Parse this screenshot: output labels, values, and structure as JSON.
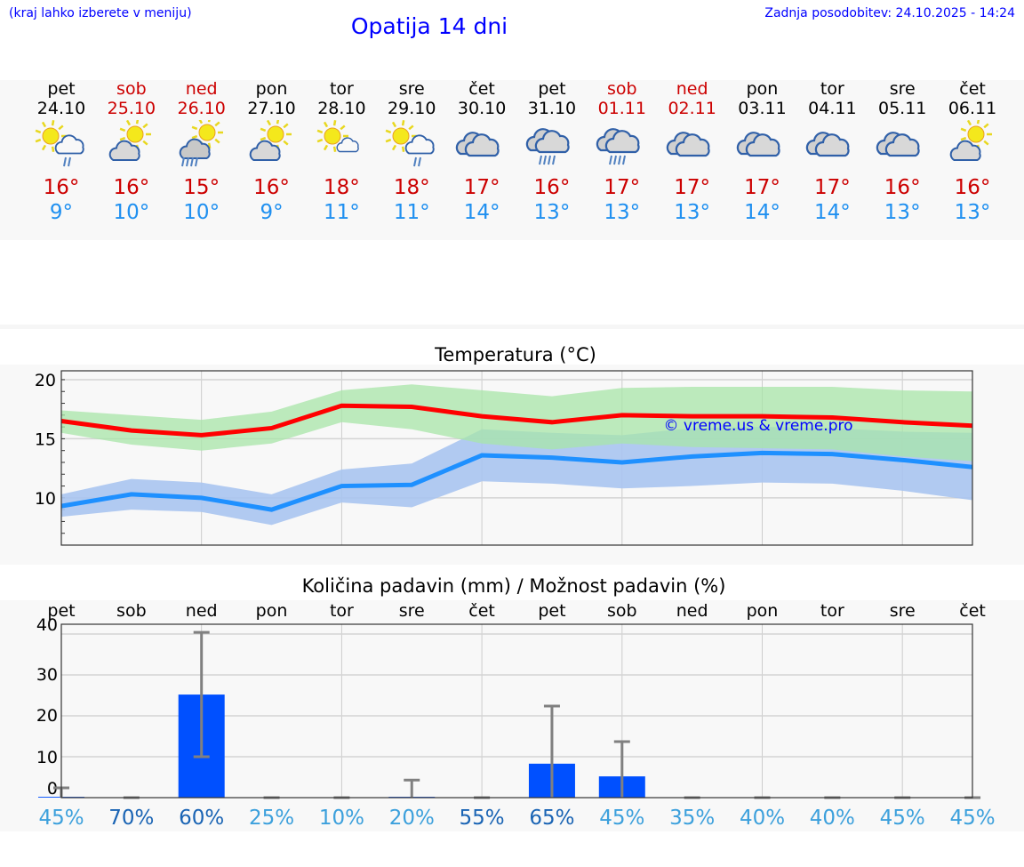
{
  "header": {
    "hint": "(kraj lahko izberete v meniju)",
    "title": "Opatija 14 dni",
    "updated": "Zadnja posodobitev: 24.10.2025 - 14:24"
  },
  "days": [
    {
      "name": "pet",
      "date": "24.10",
      "weekend": false,
      "icon": "sun-cloud-rain",
      "hi": "16°",
      "lo": "9°"
    },
    {
      "name": "sob",
      "date": "25.10",
      "weekend": true,
      "icon": "cloud-sun",
      "hi": "16°",
      "lo": "10°"
    },
    {
      "name": "ned",
      "date": "26.10",
      "weekend": true,
      "icon": "cloud-sun-rain",
      "hi": "15°",
      "lo": "10°"
    },
    {
      "name": "pon",
      "date": "27.10",
      "weekend": false,
      "icon": "cloud-sun",
      "hi": "16°",
      "lo": "9°"
    },
    {
      "name": "tor",
      "date": "28.10",
      "weekend": false,
      "icon": "sun-small-cloud",
      "hi": "18°",
      "lo": "11°"
    },
    {
      "name": "sre",
      "date": "29.10",
      "weekend": false,
      "icon": "sun-cloud-rain",
      "hi": "18°",
      "lo": "11°"
    },
    {
      "name": "čet",
      "date": "30.10",
      "weekend": false,
      "icon": "overcast",
      "hi": "17°",
      "lo": "14°"
    },
    {
      "name": "pet",
      "date": "31.10",
      "weekend": false,
      "icon": "overcast-rain",
      "hi": "16°",
      "lo": "13°"
    },
    {
      "name": "sob",
      "date": "01.11",
      "weekend": true,
      "icon": "overcast-rain",
      "hi": "17°",
      "lo": "13°"
    },
    {
      "name": "ned",
      "date": "02.11",
      "weekend": true,
      "icon": "overcast",
      "hi": "17°",
      "lo": "13°"
    },
    {
      "name": "pon",
      "date": "03.11",
      "weekend": false,
      "icon": "overcast",
      "hi": "17°",
      "lo": "14°"
    },
    {
      "name": "tor",
      "date": "04.11",
      "weekend": false,
      "icon": "overcast",
      "hi": "17°",
      "lo": "14°"
    },
    {
      "name": "sre",
      "date": "05.11",
      "weekend": false,
      "icon": "overcast",
      "hi": "16°",
      "lo": "13°"
    },
    {
      "name": "čet",
      "date": "06.11",
      "weekend": false,
      "icon": "cloud-sun",
      "hi": "16°",
      "lo": "13°"
    }
  ],
  "colors": {
    "weekend": "#cc0000",
    "weekday": "#000000",
    "max_line": "#ff0000",
    "max_band": "#a8e6a8",
    "min_line": "#1e90ff",
    "min_band": "#a8c4f0",
    "bar": "#0050ff",
    "error": "#808080",
    "pct_high": "#1a64b4",
    "pct_low": "#3ca0dc"
  },
  "chart_data": [
    {
      "type": "line",
      "title": "Temperatura (°C)",
      "ylim": [
        6,
        20.75
      ],
      "yticks": [
        10,
        15,
        20
      ],
      "watermark": "© vreme.us & vreme.pro",
      "x": [
        0,
        1,
        2,
        3,
        4,
        5,
        6,
        7,
        8,
        9,
        10,
        11,
        12,
        13
      ],
      "series": [
        {
          "name": "max",
          "values": [
            16.5,
            15.7,
            15.3,
            15.9,
            17.8,
            17.7,
            16.9,
            16.4,
            17.0,
            16.9,
            16.9,
            16.8,
            16.4,
            16.1
          ],
          "upper": [
            17.4,
            17.0,
            16.6,
            17.3,
            19.1,
            19.6,
            19.1,
            18.6,
            19.3,
            19.4,
            19.4,
            19.4,
            19.1,
            19.0
          ],
          "lower": [
            15.5,
            14.5,
            14.0,
            14.6,
            16.4,
            15.8,
            14.6,
            14.1,
            14.6,
            14.3,
            14.2,
            14.1,
            13.5,
            13.1
          ]
        },
        {
          "name": "min",
          "values": [
            9.3,
            10.3,
            10.0,
            9.0,
            11.0,
            11.1,
            13.6,
            13.4,
            13.0,
            13.5,
            13.8,
            13.7,
            13.2,
            12.6
          ],
          "upper": [
            10.3,
            11.6,
            11.3,
            10.3,
            12.4,
            12.9,
            15.8,
            15.5,
            15.3,
            15.9,
            16.0,
            15.9,
            15.6,
            15.5
          ],
          "lower": [
            8.4,
            9.0,
            8.8,
            7.7,
            9.6,
            9.2,
            11.4,
            11.2,
            10.8,
            11.0,
            11.3,
            11.2,
            10.6,
            9.8
          ]
        }
      ]
    },
    {
      "type": "bar",
      "title": "Količina padavin (mm) / Možnost padavin (%)",
      "ylim": [
        0,
        42.4
      ],
      "yticks": [
        0,
        10,
        20,
        30,
        40
      ],
      "categories": [
        "pet",
        "sob",
        "ned",
        "pon",
        "tor",
        "sre",
        "čet",
        "pet",
        "sob",
        "ned",
        "pon",
        "tor",
        "sre",
        "čet"
      ],
      "values": [
        0.2,
        0,
        25.2,
        0,
        0,
        0.2,
        0,
        8.3,
        5.2,
        0,
        0,
        0,
        0,
        0
      ],
      "error_low": [
        0,
        0,
        10,
        0,
        0,
        0,
        0,
        0,
        0,
        0,
        0,
        0,
        0,
        0
      ],
      "error_high": [
        2.4,
        0,
        40.4,
        0,
        0,
        4.3,
        0,
        22.4,
        13.7,
        0,
        0,
        0,
        0,
        0
      ],
      "probability": [
        "45%",
        "70%",
        "60%",
        "25%",
        "10%",
        "20%",
        "55%",
        "65%",
        "45%",
        "35%",
        "40%",
        "40%",
        "45%",
        "45%"
      ],
      "probability_values": [
        45,
        70,
        60,
        25,
        10,
        20,
        55,
        65,
        45,
        35,
        40,
        40,
        45,
        45
      ]
    }
  ]
}
